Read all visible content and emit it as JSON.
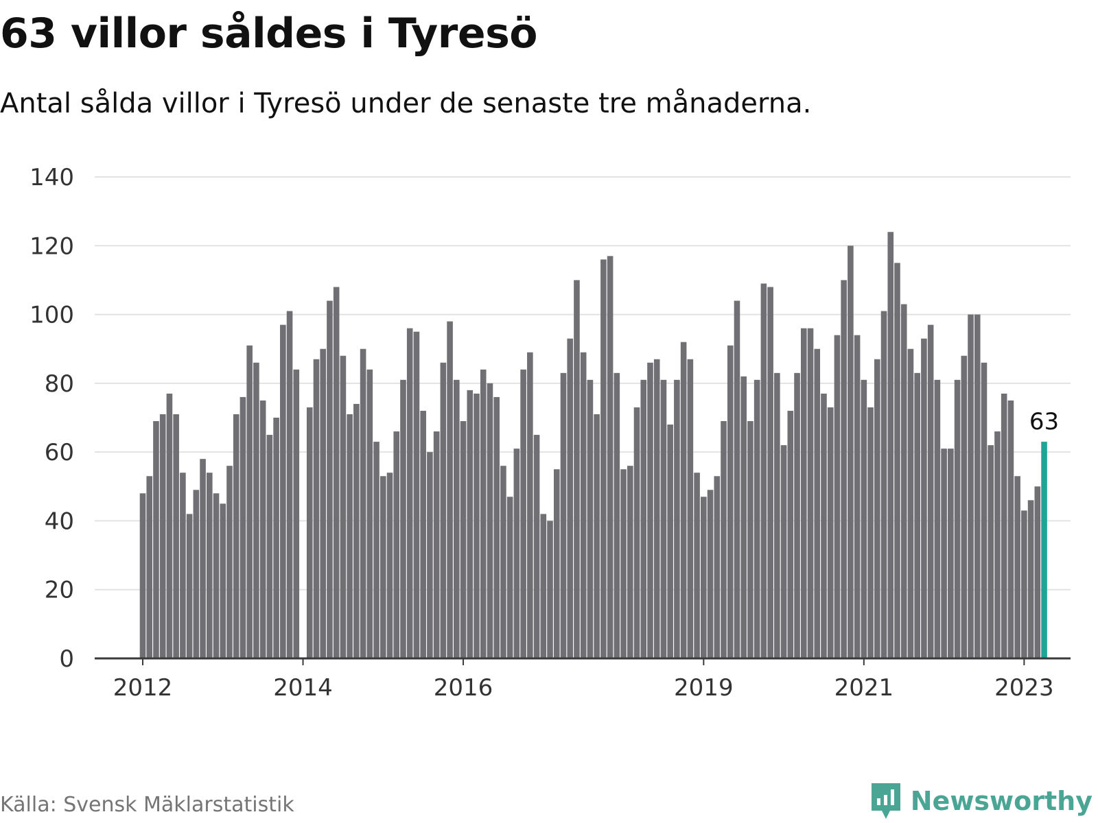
{
  "title": "63 villor såldes i Tyresö",
  "subtitle": "Antal sålda villor i Tyresö under de senaste tre månaderna.",
  "source": "Källa: Svensk Mäklarstatistik",
  "brand": {
    "name": "Newsworthy",
    "icon": "newsworthy-logo-icon"
  },
  "colors": {
    "bar": "#707074",
    "highlight": "#1fa496",
    "grid": "#e2e2e2",
    "axis": "#3a3a3a",
    "text": "#333333"
  },
  "chart_data": {
    "type": "bar",
    "title": "63 villor såldes i Tyresö",
    "subtitle": "Antal sålda villor i Tyresö under de senaste tre månaderna.",
    "xlabel": "",
    "ylabel": "",
    "ylim": [
      0,
      140
    ],
    "y_ticks": [
      0,
      20,
      40,
      60,
      80,
      100,
      120,
      140
    ],
    "grid": true,
    "x_tick_labels": [
      {
        "label": "2012",
        "index": 0
      },
      {
        "label": "2014",
        "index": 24
      },
      {
        "label": "2016",
        "index": 48
      },
      {
        "label": "2019",
        "index": 84
      },
      {
        "label": "2021",
        "index": 108
      },
      {
        "label": "2023",
        "index": 132
      }
    ],
    "highlight_index": 135,
    "highlight_label": "63",
    "series": [
      {
        "name": "Antal sålda villor",
        "values": [
          48,
          53,
          69,
          71,
          77,
          71,
          54,
          42,
          49,
          58,
          54,
          48,
          45,
          56,
          71,
          76,
          91,
          86,
          75,
          65,
          70,
          97,
          101,
          84,
          0,
          73,
          87,
          90,
          104,
          108,
          88,
          71,
          74,
          90,
          84,
          63,
          53,
          54,
          66,
          81,
          96,
          95,
          72,
          60,
          66,
          86,
          98,
          81,
          69,
          78,
          77,
          84,
          80,
          76,
          56,
          47,
          61,
          84,
          89,
          65,
          42,
          40,
          55,
          83,
          93,
          110,
          89,
          81,
          71,
          116,
          117,
          83,
          55,
          56,
          73,
          81,
          86,
          87,
          81,
          68,
          81,
          92,
          87,
          54,
          47,
          49,
          53,
          69,
          91,
          104,
          82,
          69,
          81,
          109,
          108,
          83,
          62,
          72,
          83,
          96,
          96,
          90,
          77,
          73,
          94,
          110,
          120,
          94,
          81,
          73,
          87,
          101,
          124,
          115,
          103,
          90,
          83,
          93,
          97,
          81,
          61,
          61,
          81,
          88,
          100,
          100,
          86,
          62,
          66,
          77,
          75,
          53,
          43,
          46,
          50,
          63
        ]
      }
    ]
  }
}
